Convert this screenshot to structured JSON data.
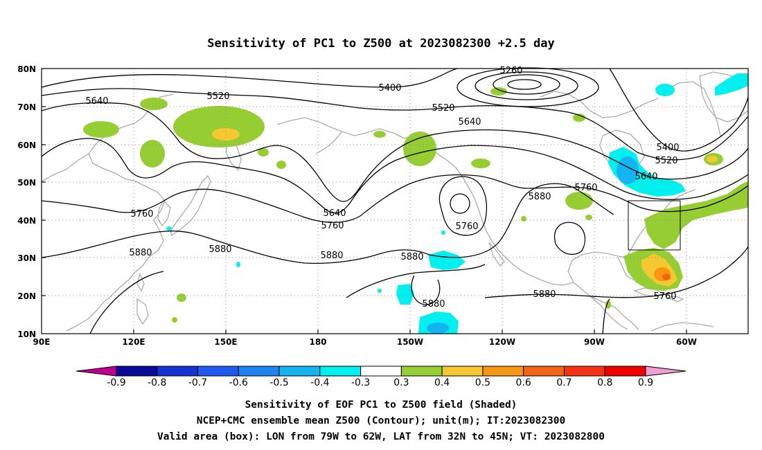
{
  "title": "Sensitivity of PC1 to Z500 at 2023082300 +2.5 day",
  "lat_ticks": [
    "80N",
    "70N",
    "60N",
    "50N",
    "40N",
    "30N",
    "20N",
    "10N"
  ],
  "lon_ticks": [
    "90E",
    "120E",
    "150E",
    "180",
    "150W",
    "120W",
    "90W",
    "60W"
  ],
  "contour_labels": [
    "5260",
    "5400",
    "5520",
    "5640",
    "5640",
    "5520",
    "5400",
    "5640",
    "5520",
    "5640",
    "5760",
    "5760",
    "5760",
    "5880",
    "5880",
    "5880",
    "5880",
    "5880",
    "5880",
    "5880",
    "5760",
    "5880",
    "5640",
    "5760"
  ],
  "colorbar": {
    "labels": [
      "-0.9",
      "-0.8",
      "-0.7",
      "-0.6",
      "-0.5",
      "-0.4",
      "-0.3",
      "0.3",
      "0.4",
      "0.5",
      "0.6",
      "0.7",
      "0.8",
      "0.9"
    ],
    "colors": {
      "neg_tip": "#c0008c",
      "pos_tip": "#f0a0d0",
      "bins": [
        "#0a0a9a",
        "#1432d2",
        "#1e5af0",
        "#1e82f0",
        "#14b4f0",
        "#00f0f0",
        "#ffffff",
        "#96cd32",
        "#f5c832",
        "#f59614",
        "#f56414",
        "#f53214",
        "#f00000"
      ]
    }
  },
  "captions": [
    "Sensitivity of EOF PC1 to Z500 field (Shaded)",
    "NCEP+CMC ensemble mean Z500 (Contour); unit(m); IT:2023082300",
    "Valid area (box): LON from 79W to 62W, LAT from 32N to 45N; VT: 2023082800"
  ],
  "valid_box": {
    "lon_w": -79,
    "lon_e": -62,
    "lat_s": 32,
    "lat_n": 45
  },
  "map_extent": {
    "lon_min": 90,
    "lon_max": 320,
    "lat_min": 10,
    "lat_max": 80
  },
  "colors": {
    "contour": "#000000",
    "coast": "#aaaaaa",
    "grid": "#888888"
  }
}
